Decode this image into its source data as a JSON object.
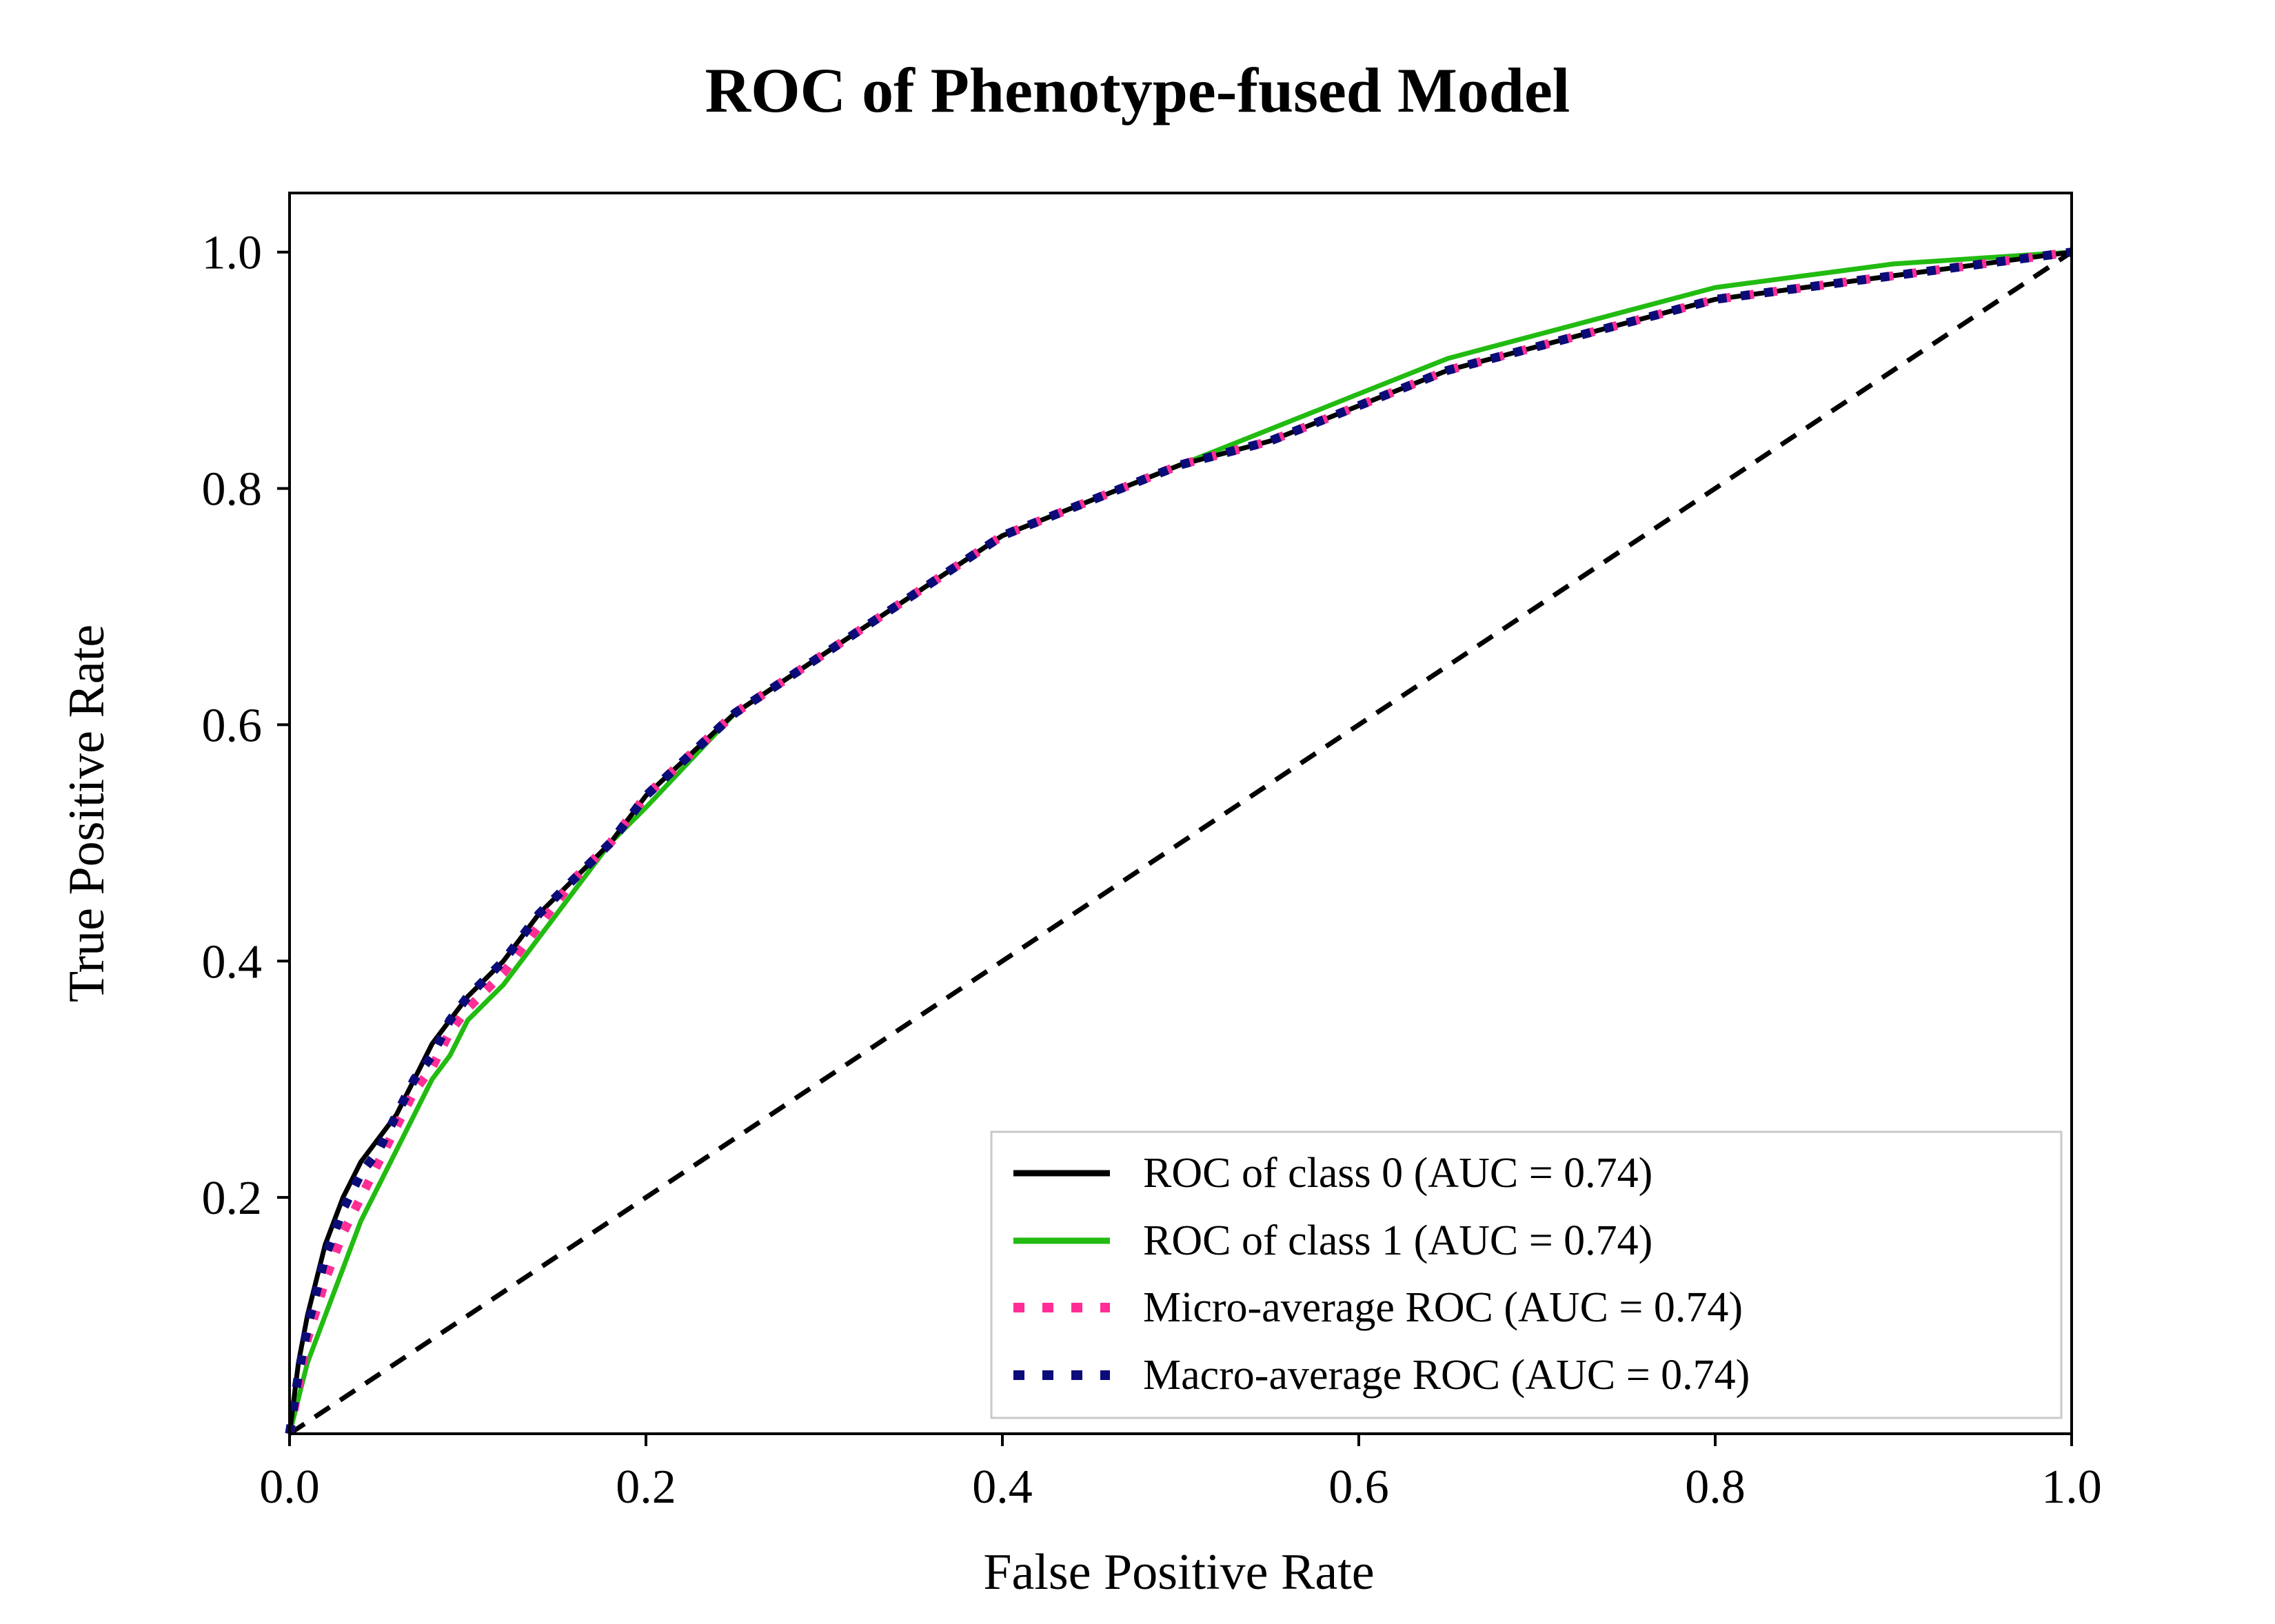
{
  "chart_data": {
    "type": "line",
    "title": "ROC of  Phenotype-fused Model",
    "xlabel": "False Positive Rate",
    "ylabel": "True Positive Rate",
    "xlim": [
      0.0,
      1.0
    ],
    "ylim": [
      0.0,
      1.05
    ],
    "xticks": [
      "0.0",
      "0.2",
      "0.4",
      "0.6",
      "0.8",
      "1.0"
    ],
    "yticks": [
      "0.2",
      "0.4",
      "0.6",
      "0.8",
      "1.0"
    ],
    "legend_position": "lower-right",
    "grid": false,
    "series": [
      {
        "name": "ROC of class 0 (AUC = 0.74)",
        "color": "#000000",
        "style": "solid",
        "x": [
          0.0,
          0.005,
          0.01,
          0.02,
          0.03,
          0.04,
          0.05,
          0.06,
          0.07,
          0.08,
          0.09,
          0.1,
          0.12,
          0.14,
          0.16,
          0.18,
          0.2,
          0.25,
          0.3,
          0.35,
          0.4,
          0.45,
          0.5,
          0.55,
          0.6,
          0.65,
          0.7,
          0.75,
          0.8,
          0.85,
          0.9,
          0.95,
          1.0
        ],
        "y": [
          0.0,
          0.06,
          0.1,
          0.16,
          0.2,
          0.23,
          0.25,
          0.27,
          0.3,
          0.33,
          0.35,
          0.37,
          0.4,
          0.44,
          0.47,
          0.5,
          0.54,
          0.61,
          0.66,
          0.71,
          0.76,
          0.79,
          0.82,
          0.84,
          0.87,
          0.9,
          0.92,
          0.94,
          0.96,
          0.97,
          0.98,
          0.99,
          1.0
        ]
      },
      {
        "name": "ROC of class 1 (AUC = 0.74)",
        "color": "#22bb11",
        "style": "solid",
        "x": [
          0.0,
          0.005,
          0.01,
          0.02,
          0.03,
          0.04,
          0.05,
          0.06,
          0.07,
          0.08,
          0.09,
          0.1,
          0.12,
          0.14,
          0.16,
          0.18,
          0.2,
          0.25,
          0.3,
          0.35,
          0.4,
          0.45,
          0.5,
          0.55,
          0.6,
          0.65,
          0.7,
          0.75,
          0.8,
          0.85,
          0.9,
          0.95,
          1.0
        ],
        "y": [
          0.0,
          0.03,
          0.06,
          0.1,
          0.14,
          0.18,
          0.21,
          0.24,
          0.27,
          0.3,
          0.32,
          0.35,
          0.38,
          0.42,
          0.46,
          0.5,
          0.53,
          0.61,
          0.66,
          0.71,
          0.76,
          0.79,
          0.82,
          0.85,
          0.88,
          0.91,
          0.93,
          0.95,
          0.97,
          0.98,
          0.99,
          0.995,
          1.0
        ]
      },
      {
        "name": "Micro-average ROC (AUC = 0.74)",
        "color": "#ff2d95",
        "style": "dotted",
        "x": [
          0.0,
          0.005,
          0.01,
          0.02,
          0.03,
          0.04,
          0.05,
          0.06,
          0.07,
          0.08,
          0.09,
          0.1,
          0.12,
          0.14,
          0.16,
          0.18,
          0.2,
          0.25,
          0.3,
          0.35,
          0.4,
          0.45,
          0.5,
          0.55,
          0.6,
          0.65,
          0.7,
          0.75,
          0.8,
          0.85,
          0.9,
          0.95,
          1.0
        ],
        "y": [
          0.0,
          0.04,
          0.08,
          0.13,
          0.17,
          0.2,
          0.23,
          0.26,
          0.29,
          0.31,
          0.34,
          0.36,
          0.39,
          0.43,
          0.47,
          0.5,
          0.54,
          0.61,
          0.66,
          0.71,
          0.76,
          0.79,
          0.82,
          0.84,
          0.87,
          0.9,
          0.92,
          0.94,
          0.96,
          0.97,
          0.98,
          0.99,
          1.0
        ]
      },
      {
        "name": "Macro-average ROC (AUC = 0.74)",
        "color": "#0b0b7a",
        "style": "dotted",
        "x": [
          0.0,
          0.005,
          0.01,
          0.02,
          0.03,
          0.04,
          0.05,
          0.06,
          0.07,
          0.08,
          0.09,
          0.1,
          0.12,
          0.14,
          0.16,
          0.18,
          0.2,
          0.25,
          0.3,
          0.35,
          0.4,
          0.45,
          0.5,
          0.55,
          0.6,
          0.65,
          0.7,
          0.75,
          0.8,
          0.85,
          0.9,
          0.95,
          1.0
        ],
        "y": [
          0.0,
          0.05,
          0.09,
          0.15,
          0.19,
          0.22,
          0.24,
          0.27,
          0.3,
          0.32,
          0.35,
          0.37,
          0.4,
          0.44,
          0.47,
          0.5,
          0.54,
          0.61,
          0.66,
          0.71,
          0.76,
          0.79,
          0.82,
          0.84,
          0.87,
          0.9,
          0.92,
          0.94,
          0.96,
          0.97,
          0.98,
          0.99,
          1.0
        ]
      },
      {
        "name": "",
        "color": "#000000",
        "style": "dashed",
        "x": [
          0.0,
          1.0
        ],
        "y": [
          0.0,
          1.0
        ]
      }
    ]
  }
}
